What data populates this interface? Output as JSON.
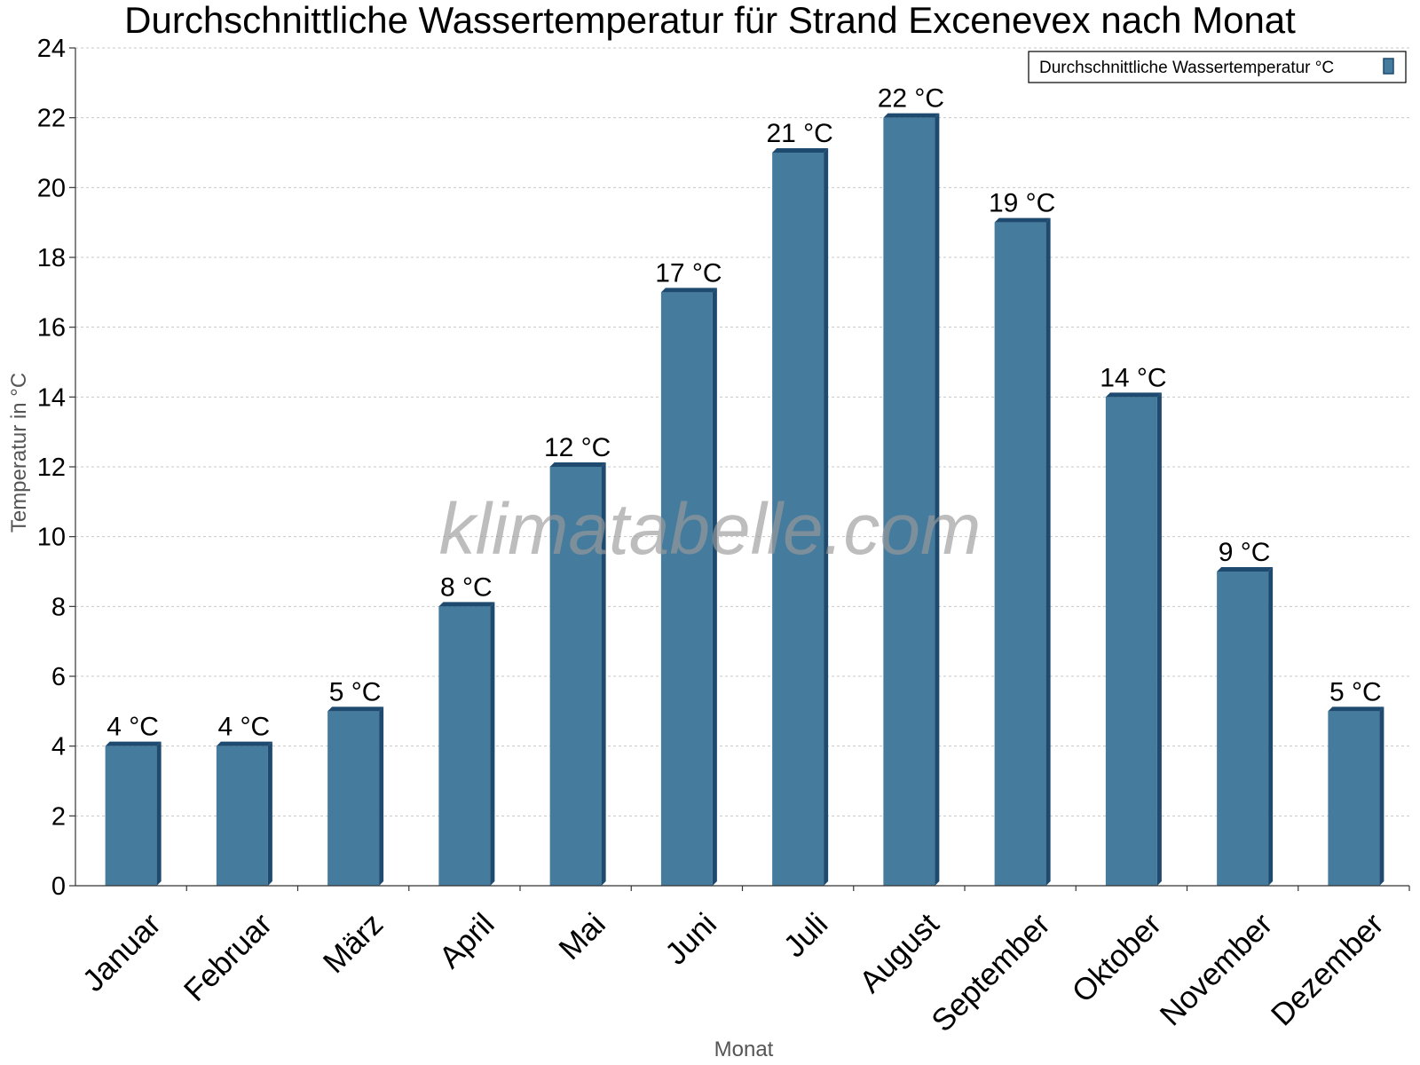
{
  "chart_data": {
    "type": "bar",
    "title": "Durchschnittliche Wassertemperatur für Strand Excenevex nach Monat",
    "xlabel": "Monat",
    "ylabel": "Temperatur in °C",
    "categories": [
      "Januar",
      "Februar",
      "März",
      "April",
      "Mai",
      "Juni",
      "Juli",
      "August",
      "September",
      "Oktober",
      "November",
      "Dezember"
    ],
    "series": [
      {
        "name": "Durchschnittliche Wassertemperatur °C",
        "values": [
          4,
          4,
          5,
          8,
          12,
          17,
          21,
          22,
          19,
          14,
          9,
          5
        ],
        "labels": [
          "4 °C",
          "4 °C",
          "5 °C",
          "8 °C",
          "12 °C",
          "17 °C",
          "21 °C",
          "22 °C",
          "19 °C",
          "14 °C",
          "9 °C",
          "5 °C"
        ]
      }
    ],
    "ylim": [
      0,
      24
    ],
    "yticks": [
      0,
      2,
      4,
      6,
      8,
      10,
      12,
      14,
      16,
      18,
      20,
      22,
      24
    ],
    "grid": true,
    "legend_position": "top-right",
    "colors": {
      "bar": "#457b9d",
      "bar_side": "#1d4a6e",
      "bar_top": "#1d4a6e"
    }
  },
  "watermark": "klimatabelle.com"
}
